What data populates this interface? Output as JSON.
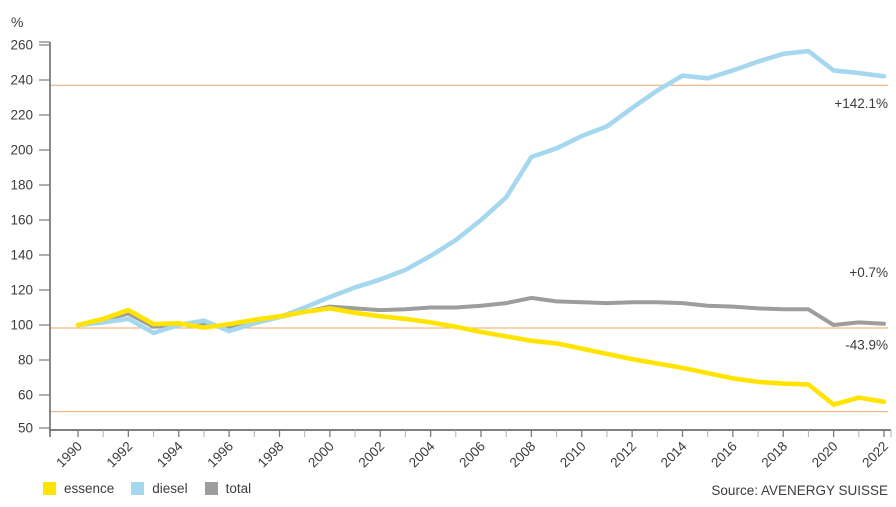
{
  "chart_data": {
    "type": "line",
    "ylabel": "%",
    "ylim": [
      50,
      260
    ],
    "y_ticks": [
      260,
      240,
      220,
      200,
      180,
      160,
      140,
      120,
      100,
      80,
      60,
      50
    ],
    "x": [
      1990,
      1991,
      1992,
      1993,
      1994,
      1995,
      1996,
      1997,
      1998,
      1999,
      2000,
      2001,
      2002,
      2003,
      2004,
      2005,
      2006,
      2007,
      2008,
      2009,
      2010,
      2011,
      2012,
      2013,
      2014,
      2015,
      2016,
      2017,
      2018,
      2019,
      2020,
      2021,
      2022
    ],
    "x_label_every": 2,
    "grid": false,
    "legend_position": "bottom-left",
    "series": [
      {
        "name": "essence",
        "color": "#FFE400",
        "stroke_width": 4.6,
        "values": [
          100,
          103.5,
          108.5,
          100.5,
          101,
          98.5,
          100.5,
          103,
          105,
          107.5,
          109.5,
          107,
          105,
          103.5,
          101.5,
          99,
          96,
          93.5,
          91,
          89.5,
          86.5,
          83.5,
          80.5,
          78,
          75.5,
          72.5,
          69.5,
          67.5,
          66.5,
          66,
          54.5,
          58.5,
          56.1
        ]
      },
      {
        "name": "diesel",
        "color": "#A5D8EF",
        "stroke_width": 4.6,
        "values": [
          100,
          101.5,
          103.5,
          95.5,
          100,
          102.5,
          96.5,
          101,
          104.5,
          110,
          116,
          121.5,
          126,
          131.5,
          139.5,
          148.5,
          160,
          173,
          196,
          201,
          208,
          213.5,
          224,
          234,
          242.5,
          241,
          245.5,
          250.5,
          255,
          256.5,
          245.5,
          244,
          242.1
        ]
      },
      {
        "name": "total",
        "color": "#9D9D9C",
        "stroke_width": 4.0,
        "values": [
          100,
          103,
          106.5,
          99,
          100.5,
          100,
          98.5,
          102,
          104.5,
          107.5,
          110.5,
          109.5,
          108.5,
          109,
          110,
          110,
          111,
          112.5,
          115.5,
          113.5,
          113,
          112.5,
          113,
          113,
          112.5,
          111,
          110.5,
          109.5,
          109,
          109,
          100,
          101.5,
          100.7
        ]
      }
    ],
    "reference_lines": [
      237,
      98.3,
      50.5
    ],
    "reference_line_color": "#F2A86B",
    "annotations": [
      {
        "text": "+142.1%",
        "series": "diesel",
        "anchor_value": 226.5
      },
      {
        "text": "+0.7%",
        "series": "total",
        "anchor_value": 130
      },
      {
        "text": "-43.9%",
        "series": "essence",
        "anchor_value": 88.5
      }
    ],
    "source": "Source: AVENERGY SUISSE",
    "colors": {
      "axis": "#575756",
      "text": "#3C3C3B",
      "tick_major": "#7A7A7A",
      "tick_minor": "#B0B0B0"
    }
  }
}
